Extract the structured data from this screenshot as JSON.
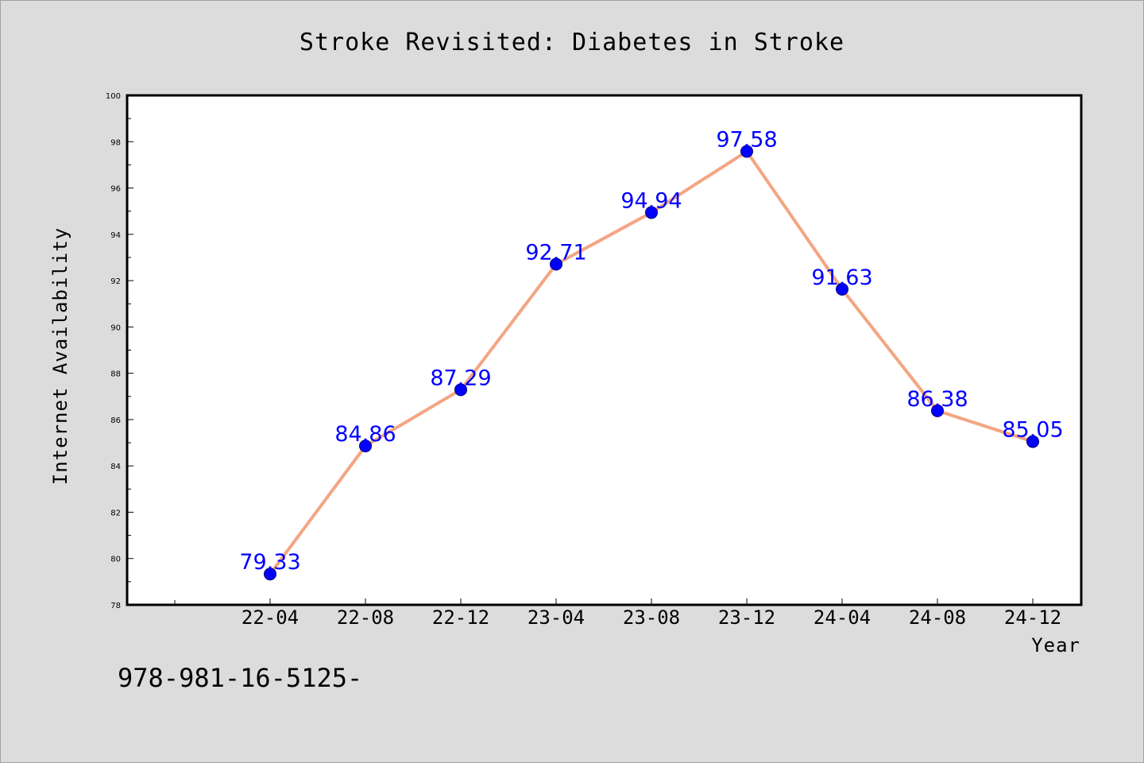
{
  "chart_data": {
    "type": "line",
    "title": "Stroke Revisited: Diabetes in Stroke",
    "xlabel": "Year",
    "ylabel": "Internet Availability",
    "categories": [
      "22-04",
      "22-08",
      "22-12",
      "23-04",
      "23-08",
      "23-12",
      "24-04",
      "24-08",
      "24-12"
    ],
    "values": [
      79.33,
      84.86,
      87.29,
      92.71,
      94.94,
      97.58,
      91.63,
      86.38,
      85.05
    ],
    "data_labels": [
      "79.33",
      "84.86",
      "87.29",
      "92.71",
      "94.94",
      "97.58",
      "91.63",
      "86.38",
      "85.05"
    ],
    "ylim": [
      78,
      100
    ],
    "yticks": [
      "78",
      "80",
      "82",
      "84",
      "86",
      "88",
      "90",
      "92",
      "94",
      "96",
      "98",
      "100"
    ],
    "grid": false,
    "legend": "none",
    "colors": {
      "line": "#f4a582",
      "marker": "#0000ff",
      "label": "#0000ff",
      "plot_background": "#ffffff",
      "figure_background": "#dcdcdc"
    }
  },
  "footer": {
    "text": "978-981-16-5125-"
  }
}
